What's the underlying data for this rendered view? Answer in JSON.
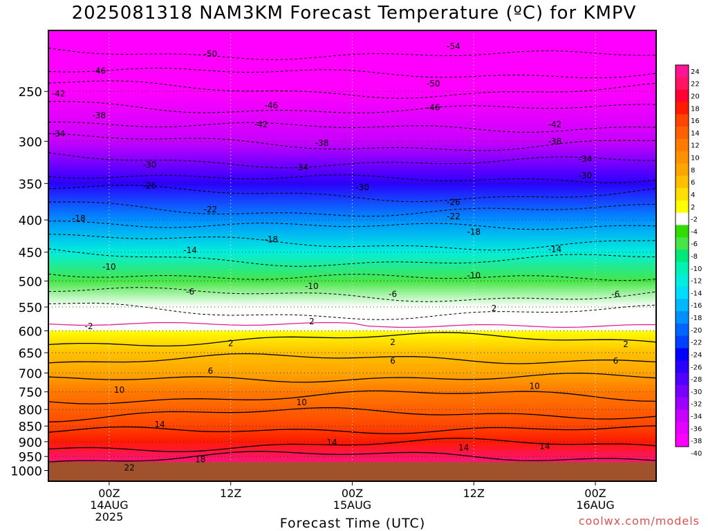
{
  "chart_data": {
    "type": "heatmap",
    "title": "2025081318 NAM3KM Forecast Temperature (ºC) for KMPV",
    "xlabel": "Forecast Time (UTC)",
    "ylabel": "",
    "credit": "coolwx.com/models",
    "x_ticks": [
      {
        "hour": 6,
        "lines": [
          "00Z",
          "14AUG",
          "2025"
        ]
      },
      {
        "hour": 18,
        "lines": [
          "12Z",
          "",
          ""
        ]
      },
      {
        "hour": 30,
        "lines": [
          "00Z",
          "15AUG",
          ""
        ]
      },
      {
        "hour": 42,
        "lines": [
          "12Z",
          "",
          ""
        ]
      },
      {
        "hour": 54,
        "lines": [
          "00Z",
          "16AUG",
          ""
        ]
      }
    ],
    "xlim": [
      0,
      60
    ],
    "y_ticks": [
      250,
      300,
      350,
      400,
      450,
      500,
      550,
      600,
      650,
      700,
      750,
      800,
      850,
      900,
      950,
      1000
    ],
    "ylim": [
      1040,
      200
    ],
    "y_scale": "log pressure (hPa)",
    "surface_level_hpa": 970,
    "surface_color": "#a0522d",
    "grid": true,
    "colorbar": {
      "labels": [
        "24",
        "22",
        "20",
        "18",
        "16",
        "14",
        "12",
        "10",
        "8",
        "6",
        "4",
        "2",
        "-2",
        "-4",
        "-6",
        "-8",
        "-10",
        "-12",
        "-14",
        "-16",
        "-18",
        "-20",
        "-22",
        "-24",
        "-26",
        "-28",
        "-30",
        "-32",
        "-34",
        "-36",
        "-38",
        "-40"
      ],
      "colors": [
        "#ff1493",
        "#ff1460",
        "#ff0033",
        "#ff1a00",
        "#ff4500",
        "#ff6000",
        "#ff7a00",
        "#ff9000",
        "#ffa500",
        "#ffc000",
        "#ffde00",
        "#ffff00",
        "#ffffff",
        "#32dc00",
        "#46e646",
        "#00e87a",
        "#00f2b4",
        "#00eedd",
        "#00ddff",
        "#00b8ff",
        "#0090ff",
        "#0066ff",
        "#0040ff",
        "#0000ff",
        "#2a00ff",
        "#5000ff",
        "#7800ff",
        "#a000ff",
        "#c800ff",
        "#e600ff",
        "#ff00ff"
      ]
    },
    "temperature_profile": [
      {
        "p": 200,
        "t": -58
      },
      {
        "p": 250,
        "t": -46
      },
      {
        "p": 300,
        "t": -36
      },
      {
        "p": 350,
        "t": -27
      },
      {
        "p": 400,
        "t": -20
      },
      {
        "p": 450,
        "t": -13
      },
      {
        "p": 500,
        "t": -8
      },
      {
        "p": 550,
        "t": -3
      },
      {
        "p": 600,
        "t": 0
      },
      {
        "p": 650,
        "t": 4
      },
      {
        "p": 700,
        "t": 6
      },
      {
        "p": 750,
        "t": 10
      },
      {
        "p": 800,
        "t": 12
      },
      {
        "p": 850,
        "t": 14
      },
      {
        "p": 900,
        "t": 17
      },
      {
        "p": 950,
        "t": 20
      },
      {
        "p": 1000,
        "t": 23
      }
    ],
    "contour_labels": [
      {
        "text": "-50",
        "hour": 16,
        "p": 218
      },
      {
        "text": "-54",
        "hour": 40,
        "p": 212
      },
      {
        "text": "-46",
        "hour": 5,
        "p": 232
      },
      {
        "text": "-50",
        "hour": 38,
        "p": 243
      },
      {
        "text": "-42",
        "hour": 1,
        "p": 252
      },
      {
        "text": "-46",
        "hour": 22,
        "p": 263
      },
      {
        "text": "-46",
        "hour": 38,
        "p": 265
      },
      {
        "text": "-38",
        "hour": 5,
        "p": 273
      },
      {
        "text": "-42",
        "hour": 21,
        "p": 282
      },
      {
        "text": "-42",
        "hour": 50,
        "p": 282
      },
      {
        "text": "-34",
        "hour": 1,
        "p": 292
      },
      {
        "text": "-38",
        "hour": 27,
        "p": 302
      },
      {
        "text": "-38",
        "hour": 50,
        "p": 300
      },
      {
        "text": "-30",
        "hour": 10,
        "p": 327
      },
      {
        "text": "-34",
        "hour": 25,
        "p": 330
      },
      {
        "text": "-34",
        "hour": 53,
        "p": 320
      },
      {
        "text": "-26",
        "hour": 10,
        "p": 353
      },
      {
        "text": "-30",
        "hour": 31,
        "p": 355
      },
      {
        "text": "-30",
        "hour": 53,
        "p": 340
      },
      {
        "text": "-26",
        "hour": 40,
        "p": 375
      },
      {
        "text": "-22",
        "hour": 16,
        "p": 385
      },
      {
        "text": "-22",
        "hour": 40,
        "p": 395
      },
      {
        "text": "-18",
        "hour": 3,
        "p": 398
      },
      {
        "text": "-18",
        "hour": 42,
        "p": 418
      },
      {
        "text": "-18",
        "hour": 22,
        "p": 430
      },
      {
        "text": "-14",
        "hour": 14,
        "p": 447
      },
      {
        "text": "-14",
        "hour": 50,
        "p": 445
      },
      {
        "text": "-10",
        "hour": 6,
        "p": 475
      },
      {
        "text": "-10",
        "hour": 42,
        "p": 490
      },
      {
        "text": "-10",
        "hour": 26,
        "p": 510
      },
      {
        "text": "-6",
        "hour": 14,
        "p": 520
      },
      {
        "text": "-6",
        "hour": 34,
        "p": 525
      },
      {
        "text": "-6",
        "hour": 56,
        "p": 525
      },
      {
        "text": "2",
        "hour": 44,
        "p": 553
      },
      {
        "text": "2",
        "hour": 26,
        "p": 580
      },
      {
        "text": "-2",
        "hour": 4,
        "p": 590
      },
      {
        "text": "2",
        "hour": 18,
        "p": 628
      },
      {
        "text": "2",
        "hour": 34,
        "p": 626
      },
      {
        "text": "2",
        "hour": 57,
        "p": 630
      },
      {
        "text": "6",
        "hour": 16,
        "p": 695
      },
      {
        "text": "6",
        "hour": 34,
        "p": 670
      },
      {
        "text": "6",
        "hour": 56,
        "p": 670
      },
      {
        "text": "10",
        "hour": 7,
        "p": 745
      },
      {
        "text": "10",
        "hour": 25,
        "p": 780
      },
      {
        "text": "10",
        "hour": 48,
        "p": 735
      },
      {
        "text": "14",
        "hour": 11,
        "p": 845
      },
      {
        "text": "14",
        "hour": 28,
        "p": 903
      },
      {
        "text": "14",
        "hour": 41,
        "p": 920
      },
      {
        "text": "14",
        "hour": 49,
        "p": 915
      },
      {
        "text": "18",
        "hour": 15,
        "p": 960
      },
      {
        "text": "22",
        "hour": 8,
        "p": 990
      }
    ]
  }
}
